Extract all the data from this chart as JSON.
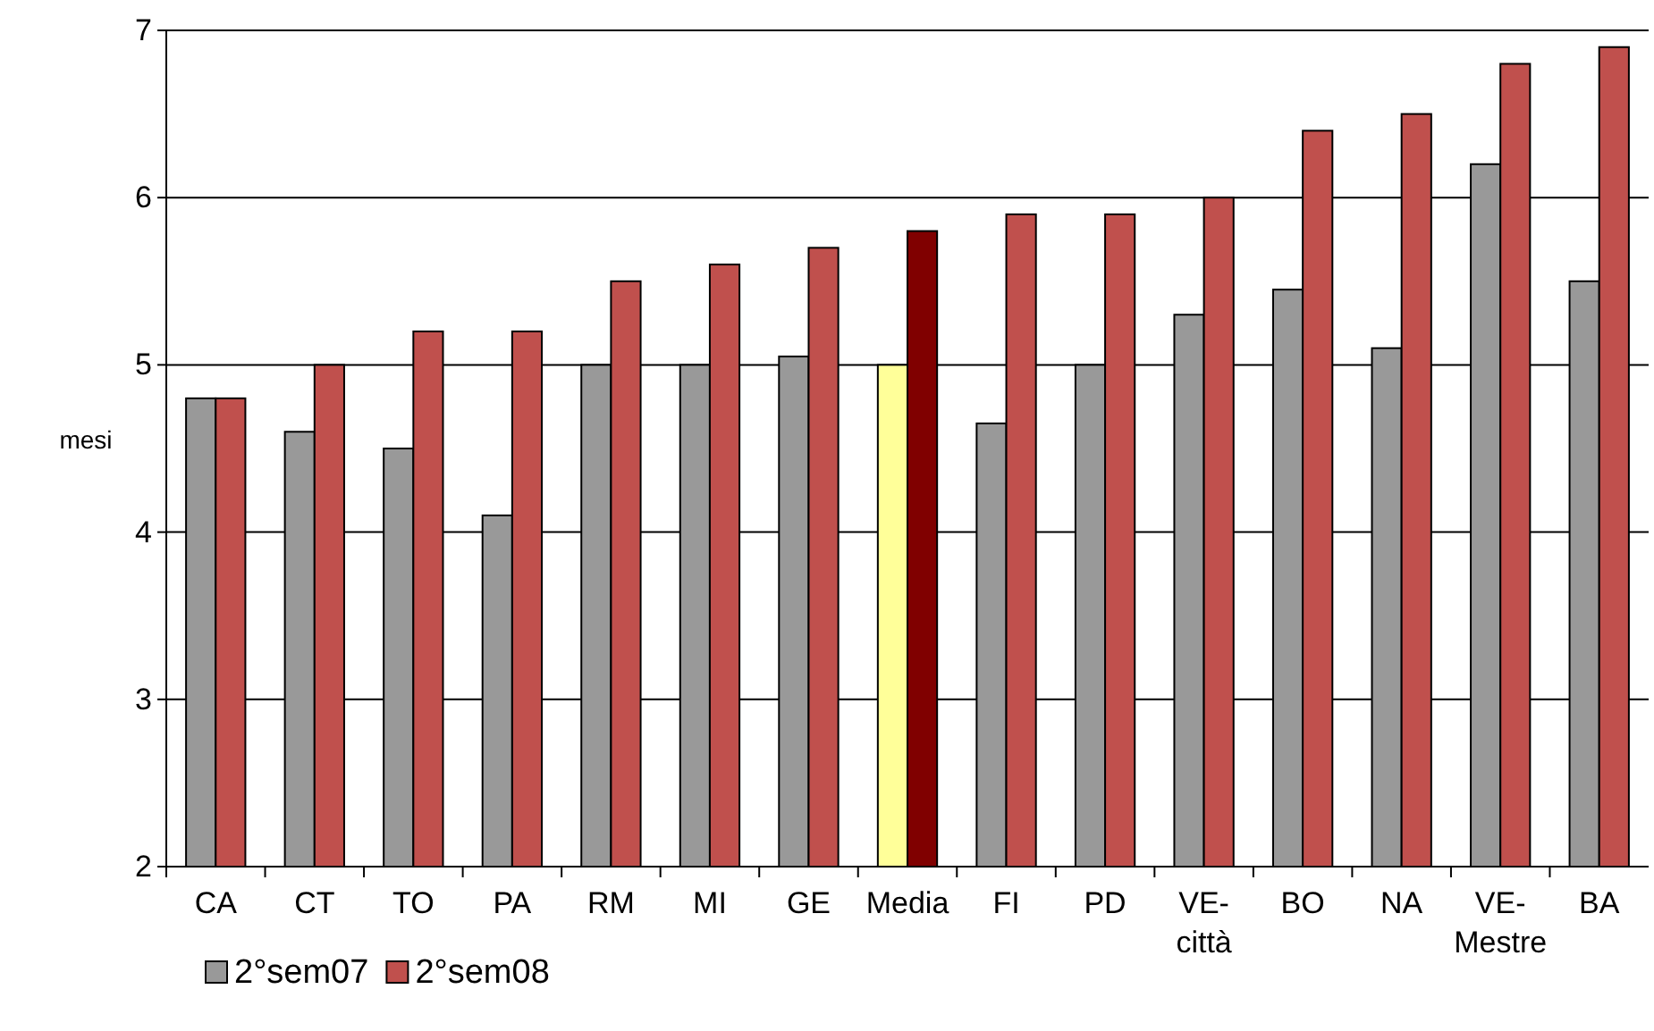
{
  "chart_data": {
    "type": "bar",
    "ylabel": "mesi",
    "categories": [
      "CA",
      "CT",
      "TO",
      "PA",
      "RM",
      "MI",
      "GE",
      "Media",
      "FI",
      "PD",
      "VE-città",
      "BO",
      "NA",
      "VE-Mestre",
      "BA"
    ],
    "series": [
      {
        "name": "2°sem07",
        "color": "#999999",
        "colors": [
          "#999999",
          "#999999",
          "#999999",
          "#999999",
          "#999999",
          "#999999",
          "#999999",
          "#ffff99",
          "#999999",
          "#999999",
          "#999999",
          "#999999",
          "#999999",
          "#999999",
          "#999999"
        ],
        "values": [
          4.8,
          4.6,
          4.5,
          4.1,
          5.0,
          5.0,
          5.05,
          5.0,
          4.65,
          5.0,
          5.3,
          5.45,
          5.1,
          6.2,
          5.5
        ]
      },
      {
        "name": "2°sem08",
        "color": "#c0504d",
        "colors": [
          "#c0504d",
          "#c0504d",
          "#c0504d",
          "#c0504d",
          "#c0504d",
          "#c0504d",
          "#c0504d",
          "#800000",
          "#c0504d",
          "#c0504d",
          "#c0504d",
          "#c0504d",
          "#c0504d",
          "#c0504d",
          "#c0504d"
        ],
        "values": [
          4.8,
          5.0,
          5.2,
          5.2,
          5.5,
          5.6,
          5.7,
          5.8,
          5.9,
          5.9,
          6.0,
          6.4,
          6.5,
          6.8,
          6.9
        ]
      }
    ],
    "ylim": [
      2,
      7
    ],
    "yticks": [
      2,
      3,
      4,
      5,
      6,
      7
    ],
    "grid": "y",
    "legend": "bottom left"
  }
}
